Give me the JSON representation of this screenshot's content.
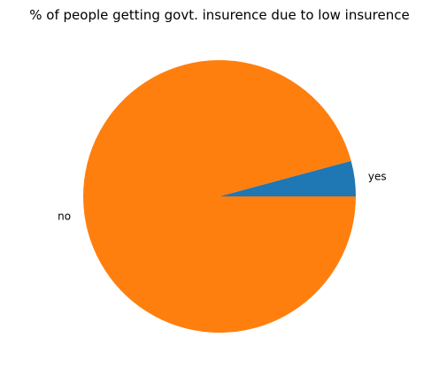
{
  "chart_data": {
    "type": "pie",
    "title": "% of people getting govt. insurence due to low insurence",
    "labels": [
      "yes",
      "no"
    ],
    "values": [
      4.2,
      95.8
    ],
    "colors": [
      "#1f77b4",
      "#ff7f0e"
    ],
    "start_angle_deg": 0,
    "direction": "counterclockwise"
  }
}
